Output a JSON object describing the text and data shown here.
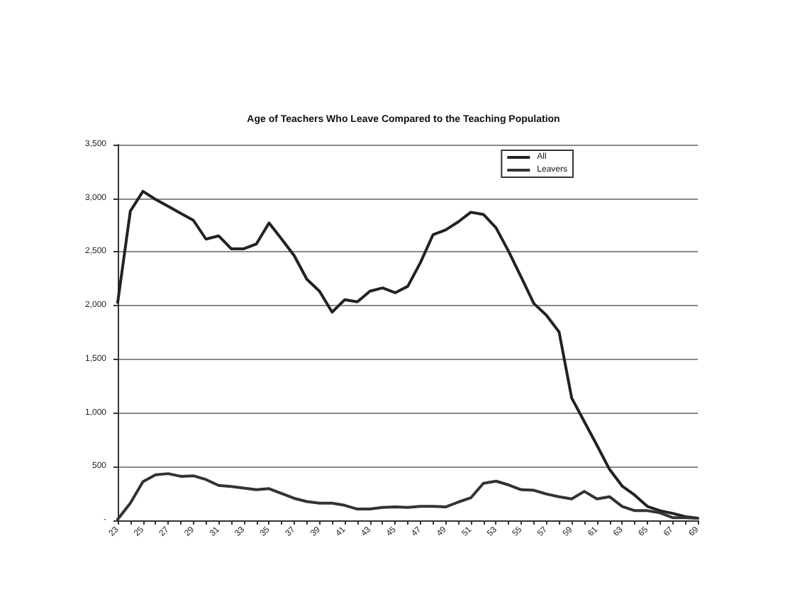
{
  "chart_data": {
    "type": "line",
    "title": "Age of Teachers Who Leave Compared to the Teaching Population",
    "categories": [
      "23",
      null,
      "25",
      null,
      "27",
      null,
      "29",
      null,
      "31",
      null,
      "33",
      null,
      "35",
      null,
      "37",
      null,
      "39",
      null,
      "41",
      null,
      "43",
      null,
      "45",
      null,
      "47",
      null,
      "49",
      null,
      "51",
      null,
      "53",
      null,
      "55",
      null,
      "57",
      null,
      "59",
      null,
      "61",
      null,
      "63",
      null,
      "65",
      null,
      "67",
      null,
      "69"
    ],
    "series": [
      {
        "name": "All",
        "color": "#222222",
        "values": [
          2030,
          2880,
          3065,
          2990,
          2925,
          2860,
          2795,
          2620,
          2650,
          2530,
          2530,
          2575,
          2770,
          2620,
          2465,
          2245,
          2135,
          1940,
          2055,
          2035,
          2135,
          2165,
          2120,
          2180,
          2400,
          2660,
          2705,
          2780,
          2870,
          2850,
          2725,
          2505,
          2265,
          2020,
          1910,
          1755,
          1140,
          920,
          700,
          475,
          320,
          235,
          130,
          90,
          65,
          35,
          20
        ]
      },
      {
        "name": "Leavers",
        "color": "#333333",
        "values": [
          10,
          160,
          360,
          425,
          435,
          410,
          415,
          380,
          325,
          315,
          300,
          285,
          295,
          250,
          205,
          175,
          160,
          160,
          140,
          105,
          105,
          120,
          125,
          120,
          130,
          130,
          125,
          170,
          210,
          345,
          365,
          330,
          285,
          280,
          245,
          220,
          200,
          270,
          200,
          220,
          130,
          90,
          90,
          70,
          25,
          25,
          20
        ]
      }
    ],
    "ylim": [
      0,
      3500
    ],
    "yticks": [
      {
        "value": 0,
        "label": "-"
      },
      500,
      {
        "value": 1000,
        "label": "1,000"
      },
      {
        "value": 1500,
        "label": "1,500"
      },
      {
        "value": 2000,
        "label": "2,000"
      },
      {
        "value": 2500,
        "label": "2,500"
      },
      {
        "value": 3000,
        "label": "3,000"
      },
      {
        "value": 3500,
        "label": "3,500"
      }
    ],
    "grid": "y",
    "legend": "top right",
    "marker": "none",
    "line_style": "solid"
  }
}
